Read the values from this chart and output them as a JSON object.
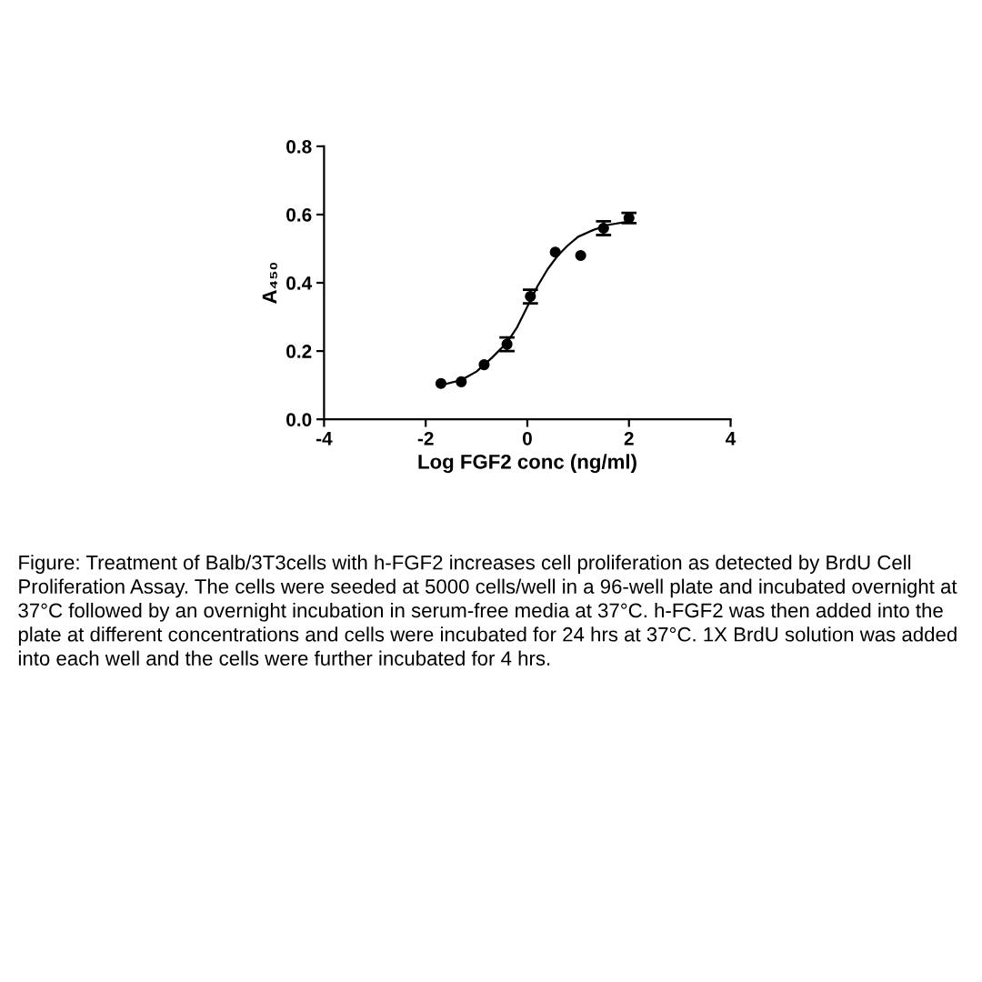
{
  "chart_data": {
    "type": "scatter",
    "xlabel": "Log FGF2 conc (ng/ml)",
    "ylabel": "A₄₅₀",
    "xlim": [
      -4,
      4
    ],
    "xticks": [
      -4,
      -2,
      0,
      2,
      4
    ],
    "ylim": [
      0,
      0.8
    ],
    "yticks": [
      {
        "value": 0,
        "label": "0.0"
      },
      0.2,
      0.4,
      0.6,
      0.8
    ],
    "grid": false,
    "legend": false,
    "series": [
      {
        "color": "#000000",
        "marker": "circle",
        "x": [
          -1.7,
          -1.3,
          -0.85,
          -0.4,
          0.06,
          0.55,
          1.05,
          1.5,
          2.0
        ],
        "values": [
          0.105,
          0.11,
          0.16,
          0.22,
          0.36,
          0.49,
          0.48,
          0.56,
          0.59
        ],
        "errors": [
          null,
          null,
          null,
          0.02,
          0.02,
          null,
          null,
          0.02,
          0.015
        ]
      },
      {
        "type": "line",
        "color": "#000000",
        "line_style": "solid",
        "marker": "none",
        "x": [
          -1.7,
          -1.3,
          -1.0,
          -0.7,
          -0.4,
          -0.2,
          0.0,
          0.2,
          0.4,
          0.6,
          0.8,
          1.0,
          1.3,
          1.6,
          2.0
        ],
        "values": [
          0.1,
          0.115,
          0.14,
          0.18,
          0.225,
          0.27,
          0.33,
          0.39,
          0.44,
          0.48,
          0.51,
          0.535,
          0.555,
          0.57,
          0.58
        ]
      }
    ],
    "annotations": [
      "Figure: Treatment of Balb/3T3cells with h-FGF2 increases cell proliferation as detected by BrdU Cell Proliferation Assay. The cells were seeded at 5000 cells/well in a 96-well plate and incubated overnight at 37°C followed by an overnight incubation in serum-free media at 37°C. h-FGF2 was then added into the plate at different concentrations and cells were incubated for 24 hrs at 37°C. 1X BrdU solution was added into each well and the cells were further incubated for 4 hrs."
    ]
  }
}
